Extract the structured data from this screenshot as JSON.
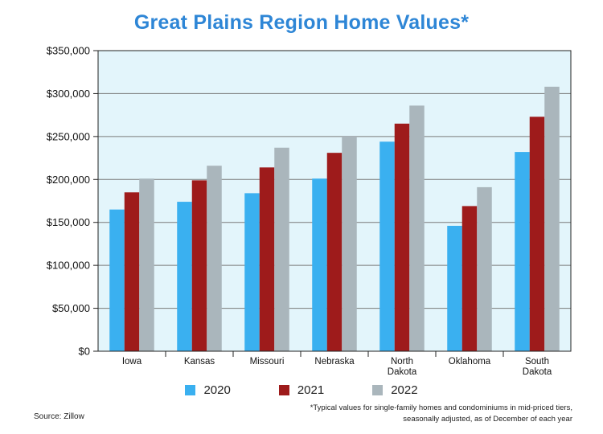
{
  "chart_data": {
    "type": "bar",
    "title": "Great Plains Region Home Values*",
    "categories": [
      [
        "Iowa"
      ],
      [
        "Kansas"
      ],
      [
        "Missouri"
      ],
      [
        "Nebraska"
      ],
      [
        "North",
        "Dakota"
      ],
      [
        "Oklahoma"
      ],
      [
        "South",
        "Dakota"
      ]
    ],
    "series": [
      {
        "name": "2020",
        "color": "#3ab0f0",
        "values": [
          165000,
          174000,
          184000,
          201000,
          244000,
          146000,
          232000
        ]
      },
      {
        "name": "2021",
        "color": "#9e1b1b",
        "values": [
          185000,
          199000,
          214000,
          231000,
          265000,
          169000,
          273000
        ]
      },
      {
        "name": "2022",
        "color": "#aab6bc",
        "values": [
          201000,
          216000,
          237000,
          250000,
          286000,
          191000,
          308000
        ]
      }
    ],
    "y_ticks": [
      "$0",
      "$50,000",
      "$100,000",
      "$150,000",
      "$200,000",
      "$250,000",
      "$300,000",
      "$350,000"
    ],
    "ylim": [
      0,
      350000
    ],
    "grid": true,
    "legend_position": "bottom",
    "plot_background": "#e3f5fb",
    "source": "Source: Zillow",
    "footnote": "*Typical values for single-family homes and condominiums in mid-priced tiers, seasonally adjusted, as of December of each year"
  }
}
